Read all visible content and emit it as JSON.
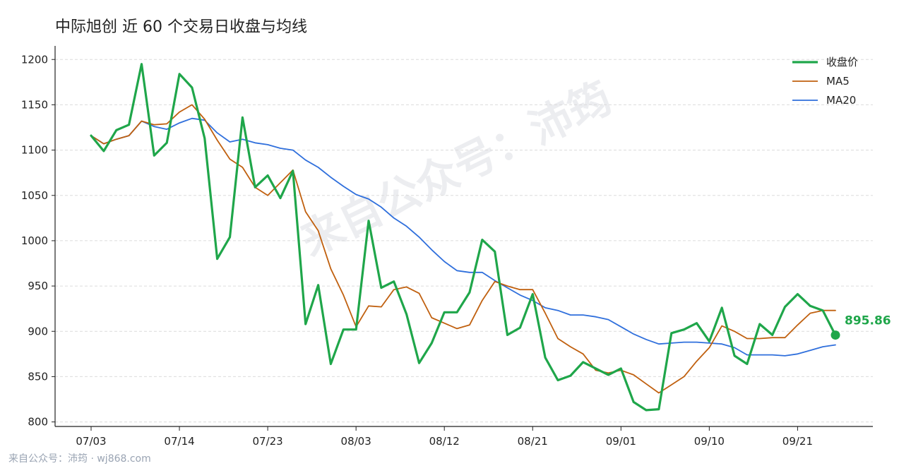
{
  "title": "中际旭创 近 60 个交易日收盘与均线",
  "watermark": "来自公众号：沛筠",
  "footer": "来自公众号：沛筠 · wj868.com",
  "legend": [
    "收盘价",
    "MA5",
    "MA20"
  ],
  "last_label": "895.86",
  "colors": {
    "close": "#1fa64a",
    "ma5": "#c0600f",
    "ma20": "#2f6fdc"
  },
  "chart_data": {
    "type": "line",
    "title": "中际旭创 近 60 个交易日收盘与均线",
    "ylim": [
      795,
      1215
    ],
    "yticks": [
      800,
      850,
      900,
      950,
      1000,
      1050,
      1100,
      1150,
      1200
    ],
    "xtick_labels": [
      {
        "i": 0,
        "label": "07/03"
      },
      {
        "i": 7,
        "label": "07/14"
      },
      {
        "i": 14,
        "label": "07/23"
      },
      {
        "i": 21,
        "label": "08/03"
      },
      {
        "i": 28,
        "label": "08/12"
      },
      {
        "i": 35,
        "label": "08/21"
      },
      {
        "i": 42,
        "label": "09/01"
      },
      {
        "i": 49,
        "label": "09/10"
      },
      {
        "i": 56,
        "label": "09/21"
      }
    ],
    "grid": true,
    "legend_position": "top-right",
    "series": [
      {
        "name": "收盘价",
        "values": [
          1116,
          1099,
          1122,
          1128,
          1195,
          1094,
          1108,
          1184,
          1169,
          1113,
          980,
          1004,
          1136,
          1059,
          1072,
          1047,
          1077,
          908,
          951,
          864,
          902,
          902,
          1022,
          948,
          955,
          919,
          865,
          887,
          921,
          921,
          943,
          1001,
          988,
          896,
          904,
          941,
          871,
          846,
          851,
          866,
          859,
          852,
          859,
          822,
          813,
          814,
          898,
          902,
          909,
          889,
          926,
          873,
          864,
          908,
          896,
          927,
          941,
          928,
          923,
          895.86
        ]
      },
      {
        "name": "MA5",
        "values": [
          1116,
          1107,
          1112,
          1116,
          1132,
          1128,
          1129,
          1142,
          1150,
          1134,
          1111,
          1090,
          1081,
          1059,
          1050,
          1064,
          1078,
          1032,
          1011,
          969,
          940,
          905,
          928,
          927,
          946,
          949,
          942,
          915,
          909,
          903,
          907,
          934,
          955,
          950,
          946,
          946,
          920,
          892,
          883,
          875,
          857,
          854,
          857,
          852,
          842,
          832,
          841,
          850,
          867,
          882,
          906,
          900,
          892,
          892,
          893,
          893,
          907,
          920,
          923,
          923
        ]
      },
      {
        "name": "MA20",
        "values": [
          1116,
          1107,
          1112,
          1116,
          1132,
          1126,
          1123,
          1130,
          1135,
          1133,
          1119,
          1109,
          1112,
          1108,
          1106,
          1102,
          1100,
          1089,
          1081,
          1070,
          1060,
          1051,
          1046,
          1037,
          1025,
          1016,
          1004,
          990,
          977,
          967,
          965,
          965,
          956,
          948,
          940,
          934,
          926,
          923,
          918,
          918,
          916,
          913,
          905,
          897,
          891,
          886,
          887,
          888,
          888,
          887,
          886,
          882,
          874,
          874,
          874,
          873,
          875,
          879,
          883,
          885
        ]
      }
    ]
  }
}
